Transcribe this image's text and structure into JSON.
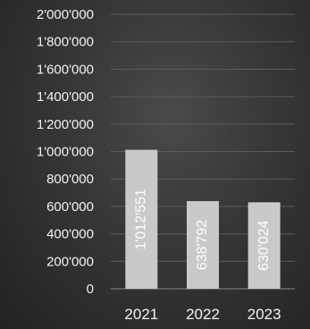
{
  "chart_data": {
    "type": "bar",
    "title": "",
    "xlabel": "",
    "ylabel": "",
    "categories": [
      "2021",
      "2022",
      "2023"
    ],
    "values": [
      1012551,
      638792,
      630024
    ],
    "data_labels": [
      "1'012'551",
      "638'792",
      "630'024"
    ],
    "ylim": [
      0,
      2000000
    ],
    "yticks": [
      0,
      200000,
      400000,
      600000,
      800000,
      1000000,
      1200000,
      1400000,
      1600000,
      1800000,
      2000000
    ],
    "ytick_labels": [
      "0",
      "200'000",
      "400'000",
      "600'000",
      "800'000",
      "1'000'000",
      "1'200'000",
      "1'400'000",
      "1'600'000",
      "1'800'000",
      "2'000'000"
    ],
    "grid": true,
    "legend": "none",
    "colors": {
      "bar": "#c9c9c9",
      "background": "#3a3a3a",
      "text": "#f2f2f2"
    }
  }
}
